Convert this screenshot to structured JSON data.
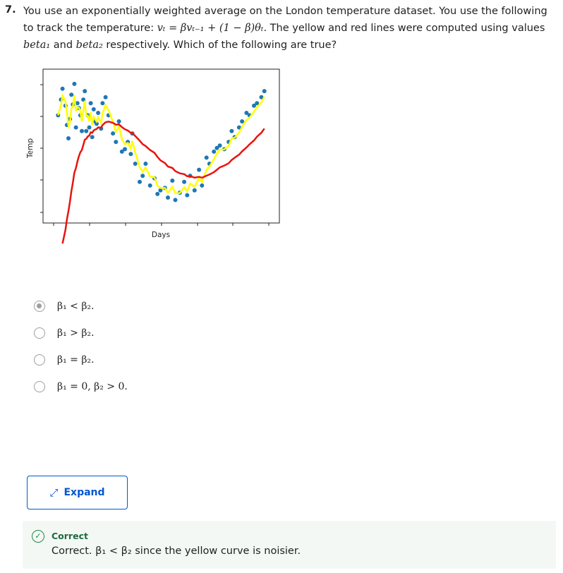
{
  "question": {
    "number": "7.",
    "part1": "You use an exponentially weighted average on the London temperature dataset. You use the following to track the temperature: ",
    "formula": "vₜ = βvₜ₋₁ + (1 − β)θₜ",
    "part2": ". The yellow and red lines were computed using values ",
    "beta1": "beta₁",
    "and": " and ",
    "beta2": "beta₂",
    "part3": " respectively. Which of the following are true?"
  },
  "chart_data": {
    "type": "scatter",
    "xlabel": "Days",
    "ylabel": "Temp",
    "colors": {
      "points": "#1f77b4",
      "yellow": "#ffff00",
      "red": "#e8140c"
    },
    "series_points": [
      [
        3,
        150
      ],
      [
        5,
        163
      ],
      [
        6,
        172
      ],
      [
        8,
        158
      ],
      [
        9,
        142
      ],
      [
        10,
        131
      ],
      [
        11,
        147
      ],
      [
        12,
        167
      ],
      [
        13,
        159
      ],
      [
        14,
        176
      ],
      [
        15,
        140
      ],
      [
        16,
        160
      ],
      [
        17,
        156
      ],
      [
        18,
        150
      ],
      [
        19,
        137
      ],
      [
        20,
        163
      ],
      [
        21,
        170
      ],
      [
        22,
        137
      ],
      [
        23,
        150
      ],
      [
        24,
        140
      ],
      [
        25,
        160
      ],
      [
        26,
        132
      ],
      [
        27,
        155
      ],
      [
        28,
        145
      ],
      [
        29,
        143
      ],
      [
        30,
        152
      ],
      [
        32,
        139
      ],
      [
        33,
        160
      ],
      [
        35,
        165
      ],
      [
        37,
        150
      ],
      [
        40,
        135
      ],
      [
        42,
        128
      ],
      [
        44,
        145
      ],
      [
        46,
        120
      ],
      [
        48,
        122
      ],
      [
        50,
        128
      ],
      [
        52,
        118
      ],
      [
        53,
        135
      ],
      [
        55,
        110
      ],
      [
        58,
        95
      ],
      [
        60,
        100
      ],
      [
        62,
        110
      ],
      [
        65,
        92
      ],
      [
        68,
        98
      ],
      [
        70,
        85
      ],
      [
        72,
        88
      ],
      [
        75,
        90
      ],
      [
        77,
        82
      ],
      [
        80,
        96
      ],
      [
        82,
        80
      ],
      [
        85,
        86
      ],
      [
        88,
        95
      ],
      [
        90,
        84
      ],
      [
        92,
        100
      ],
      [
        95,
        88
      ],
      [
        98,
        105
      ],
      [
        100,
        92
      ],
      [
        103,
        115
      ],
      [
        105,
        110
      ],
      [
        108,
        120
      ],
      [
        110,
        123
      ],
      [
        112,
        125
      ],
      [
        115,
        122
      ],
      [
        118,
        128
      ],
      [
        120,
        137
      ],
      [
        122,
        132
      ],
      [
        125,
        140
      ],
      [
        127,
        145
      ],
      [
        130,
        152
      ],
      [
        132,
        150
      ],
      [
        135,
        158
      ],
      [
        137,
        160
      ],
      [
        140,
        165
      ],
      [
        142,
        170
      ]
    ],
    "grid": false
  },
  "options": [
    {
      "label": "β₁ < β₂.",
      "selected": true
    },
    {
      "label": "β₁ > β₂.",
      "selected": false
    },
    {
      "label": "β₁ = β₂.",
      "selected": false
    },
    {
      "label": "β₁ = 0, β₂ > 0.",
      "selected": false
    }
  ],
  "expand": {
    "label": "Expand",
    "icon": "expand-arrows-icon"
  },
  "feedback": {
    "status": "Correct",
    "text": "Correct. β₁ < β₂ since the yellow curve is noisier.",
    "color": "#1e8a48"
  }
}
